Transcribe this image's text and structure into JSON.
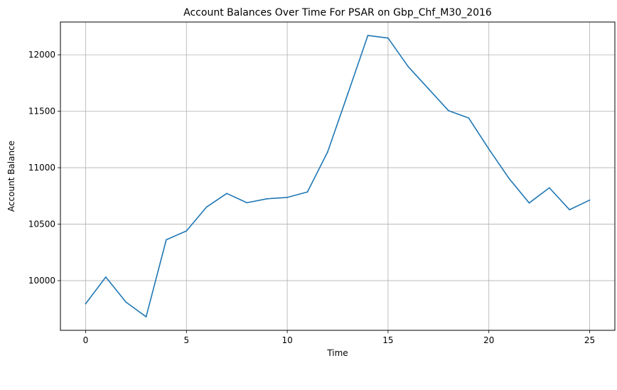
{
  "chart_data": {
    "type": "line",
    "title": "Account Balances Over Time For PSAR on Gbp_Chf_M30_2016",
    "xlabel": "Time",
    "ylabel": "Account Balance",
    "xlim": [
      -1.25,
      26.25
    ],
    "ylim": [
      9560,
      12290
    ],
    "xticks": [
      0,
      5,
      10,
      15,
      20,
      25
    ],
    "yticks": [
      10000,
      10500,
      11000,
      11500,
      12000
    ],
    "grid": true,
    "series": [
      {
        "color": "#1f77b4",
        "x": [
          0,
          1,
          2,
          3,
          4,
          5,
          6,
          7,
          8,
          9,
          10,
          11,
          12,
          13,
          14,
          15,
          16,
          17,
          18,
          19,
          20,
          21,
          22,
          23,
          24,
          25
        ],
        "y": [
          9795,
          10032,
          9810,
          9680,
          10362,
          10440,
          10652,
          10772,
          10690,
          10725,
          10737,
          10785,
          11138,
          11652,
          12171,
          12148,
          11895,
          11700,
          11505,
          11440,
          11165,
          10905,
          10688,
          10822,
          10628,
          10713
        ]
      }
    ]
  }
}
